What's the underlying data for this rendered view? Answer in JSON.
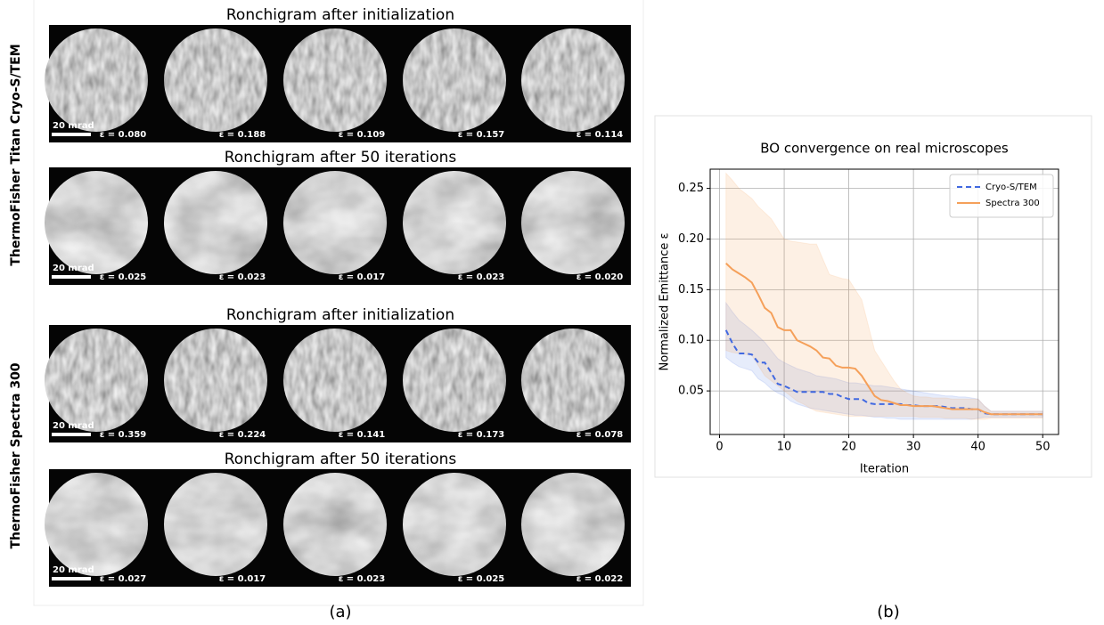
{
  "panel_a": {
    "label": "(a)",
    "groups": [
      {
        "name": "ThermoFisher Titan Cryo-S/TEM",
        "rows": [
          {
            "title": "Ronchigram after initialization",
            "scale_bar": "20 mrad",
            "eps": [
              "ε = 0.080",
              "ε = 0.188",
              "ε = 0.109",
              "ε = 0.157",
              "ε = 0.114"
            ]
          },
          {
            "title": "Ronchigram after 50 iterations",
            "scale_bar": "20 mrad",
            "eps": [
              "ε = 0.025",
              "ε = 0.023",
              "ε = 0.017",
              "ε = 0.023",
              "ε = 0.020"
            ]
          }
        ]
      },
      {
        "name": "ThermoFisher Spectra 300",
        "rows": [
          {
            "title": "Ronchigram after initialization",
            "scale_bar": "20 mrad",
            "eps": [
              "ε = 0.359",
              "ε = 0.224",
              "ε = 0.141",
              "ε = 0.173",
              "ε = 0.078"
            ]
          },
          {
            "title": "Ronchigram after 50 iterations",
            "scale_bar": "20 mrad",
            "eps": [
              "ε = 0.027",
              "ε = 0.017",
              "ε = 0.023",
              "ε = 0.025",
              "ε = 0.022"
            ]
          }
        ]
      }
    ]
  },
  "panel_b": {
    "label": "(b)"
  },
  "chart_data": {
    "type": "line",
    "title": "BO convergence on real microscopes",
    "xlabel": "Iteration",
    "ylabel": "Normalized Emittance ε",
    "x": [
      1,
      2,
      3,
      4,
      5,
      6,
      7,
      8,
      9,
      10,
      11,
      12,
      13,
      14,
      15,
      16,
      17,
      18,
      19,
      20,
      21,
      22,
      23,
      24,
      25,
      26,
      27,
      28,
      29,
      30,
      31,
      32,
      33,
      34,
      35,
      36,
      37,
      38,
      39,
      40,
      41,
      42,
      43,
      44,
      45,
      46,
      47,
      48,
      49,
      50
    ],
    "series": [
      {
        "name": "Cryo-S/TEM",
        "color": "#4169e1",
        "dash": true,
        "values": [
          0.11,
          0.097,
          0.087,
          0.087,
          0.086,
          0.078,
          0.078,
          0.068,
          0.057,
          0.055,
          0.052,
          0.049,
          0.049,
          0.049,
          0.049,
          0.049,
          0.047,
          0.047,
          0.044,
          0.042,
          0.042,
          0.042,
          0.038,
          0.037,
          0.037,
          0.037,
          0.037,
          0.037,
          0.036,
          0.036,
          0.035,
          0.035,
          0.035,
          0.035,
          0.034,
          0.033,
          0.033,
          0.033,
          0.032,
          0.032,
          0.028,
          0.027,
          0.027,
          0.027,
          0.027,
          0.027,
          0.027,
          0.027,
          0.027,
          0.027
        ],
        "upper": [
          0.137,
          0.128,
          0.12,
          0.115,
          0.11,
          0.104,
          0.098,
          0.09,
          0.082,
          0.078,
          0.075,
          0.072,
          0.07,
          0.068,
          0.065,
          0.064,
          0.063,
          0.062,
          0.06,
          0.058,
          0.058,
          0.057,
          0.056,
          0.055,
          0.055,
          0.054,
          0.053,
          0.052,
          0.051,
          0.05,
          0.049,
          0.048,
          0.047,
          0.046,
          0.045,
          0.045,
          0.044,
          0.044,
          0.043,
          0.042,
          0.035,
          0.03,
          0.03,
          0.03,
          0.03,
          0.03,
          0.03,
          0.03,
          0.03,
          0.03
        ],
        "lower": [
          0.083,
          0.078,
          0.074,
          0.072,
          0.07,
          0.062,
          0.058,
          0.052,
          0.048,
          0.045,
          0.04,
          0.037,
          0.035,
          0.033,
          0.032,
          0.031,
          0.03,
          0.029,
          0.028,
          0.027,
          0.026,
          0.026,
          0.025,
          0.024,
          0.024,
          0.023,
          0.023,
          0.022,
          0.022,
          0.022,
          0.022,
          0.022,
          0.022,
          0.022,
          0.022,
          0.022,
          0.022,
          0.022,
          0.022,
          0.023,
          0.024,
          0.024,
          0.024,
          0.024,
          0.024,
          0.024,
          0.024,
          0.024,
          0.024,
          0.024
        ]
      },
      {
        "name": "Spectra 300",
        "color": "#f5a05a",
        "dash": false,
        "values": [
          0.176,
          0.17,
          0.166,
          0.162,
          0.157,
          0.145,
          0.132,
          0.127,
          0.113,
          0.11,
          0.11,
          0.1,
          0.097,
          0.094,
          0.09,
          0.083,
          0.082,
          0.075,
          0.073,
          0.073,
          0.072,
          0.065,
          0.055,
          0.045,
          0.041,
          0.04,
          0.038,
          0.036,
          0.036,
          0.035,
          0.035,
          0.035,
          0.035,
          0.034,
          0.033,
          0.032,
          0.032,
          0.032,
          0.032,
          0.032,
          0.029,
          0.027,
          0.027,
          0.027,
          0.027,
          0.027,
          0.027,
          0.027,
          0.027,
          0.027
        ],
        "upper": [
          0.265,
          0.258,
          0.25,
          0.245,
          0.24,
          0.232,
          0.226,
          0.22,
          0.21,
          0.2,
          0.198,
          0.197,
          0.196,
          0.195,
          0.195,
          0.18,
          0.165,
          0.163,
          0.161,
          0.16,
          0.15,
          0.14,
          0.115,
          0.09,
          0.08,
          0.07,
          0.06,
          0.052,
          0.048,
          0.045,
          0.044,
          0.044,
          0.043,
          0.043,
          0.043,
          0.042,
          0.042,
          0.042,
          0.042,
          0.042,
          0.035,
          0.03,
          0.03,
          0.03,
          0.03,
          0.03,
          0.03,
          0.03,
          0.03,
          0.03
        ],
        "lower": [
          0.09,
          0.088,
          0.087,
          0.086,
          0.085,
          0.075,
          0.065,
          0.06,
          0.055,
          0.05,
          0.045,
          0.04,
          0.037,
          0.033,
          0.03,
          0.029,
          0.028,
          0.027,
          0.026,
          0.025,
          0.025,
          0.025,
          0.025,
          0.025,
          0.025,
          0.025,
          0.025,
          0.025,
          0.025,
          0.025,
          0.024,
          0.024,
          0.024,
          0.024,
          0.023,
          0.023,
          0.023,
          0.023,
          0.022,
          0.022,
          0.022,
          0.023,
          0.023,
          0.023,
          0.023,
          0.023,
          0.023,
          0.023,
          0.023,
          0.023
        ]
      }
    ],
    "xlim": [
      -1.45,
      52.45
    ],
    "ylim": [
      0.007,
      0.269
    ],
    "xticks": [
      0,
      10,
      20,
      30,
      40,
      50
    ],
    "yticks": [
      0.05,
      {
        "value": 0.1,
        "label": "0.10"
      },
      0.15,
      {
        "value": 0.2,
        "label": "0.20"
      },
      0.25
    ],
    "grid": true,
    "legend": "upper right"
  }
}
